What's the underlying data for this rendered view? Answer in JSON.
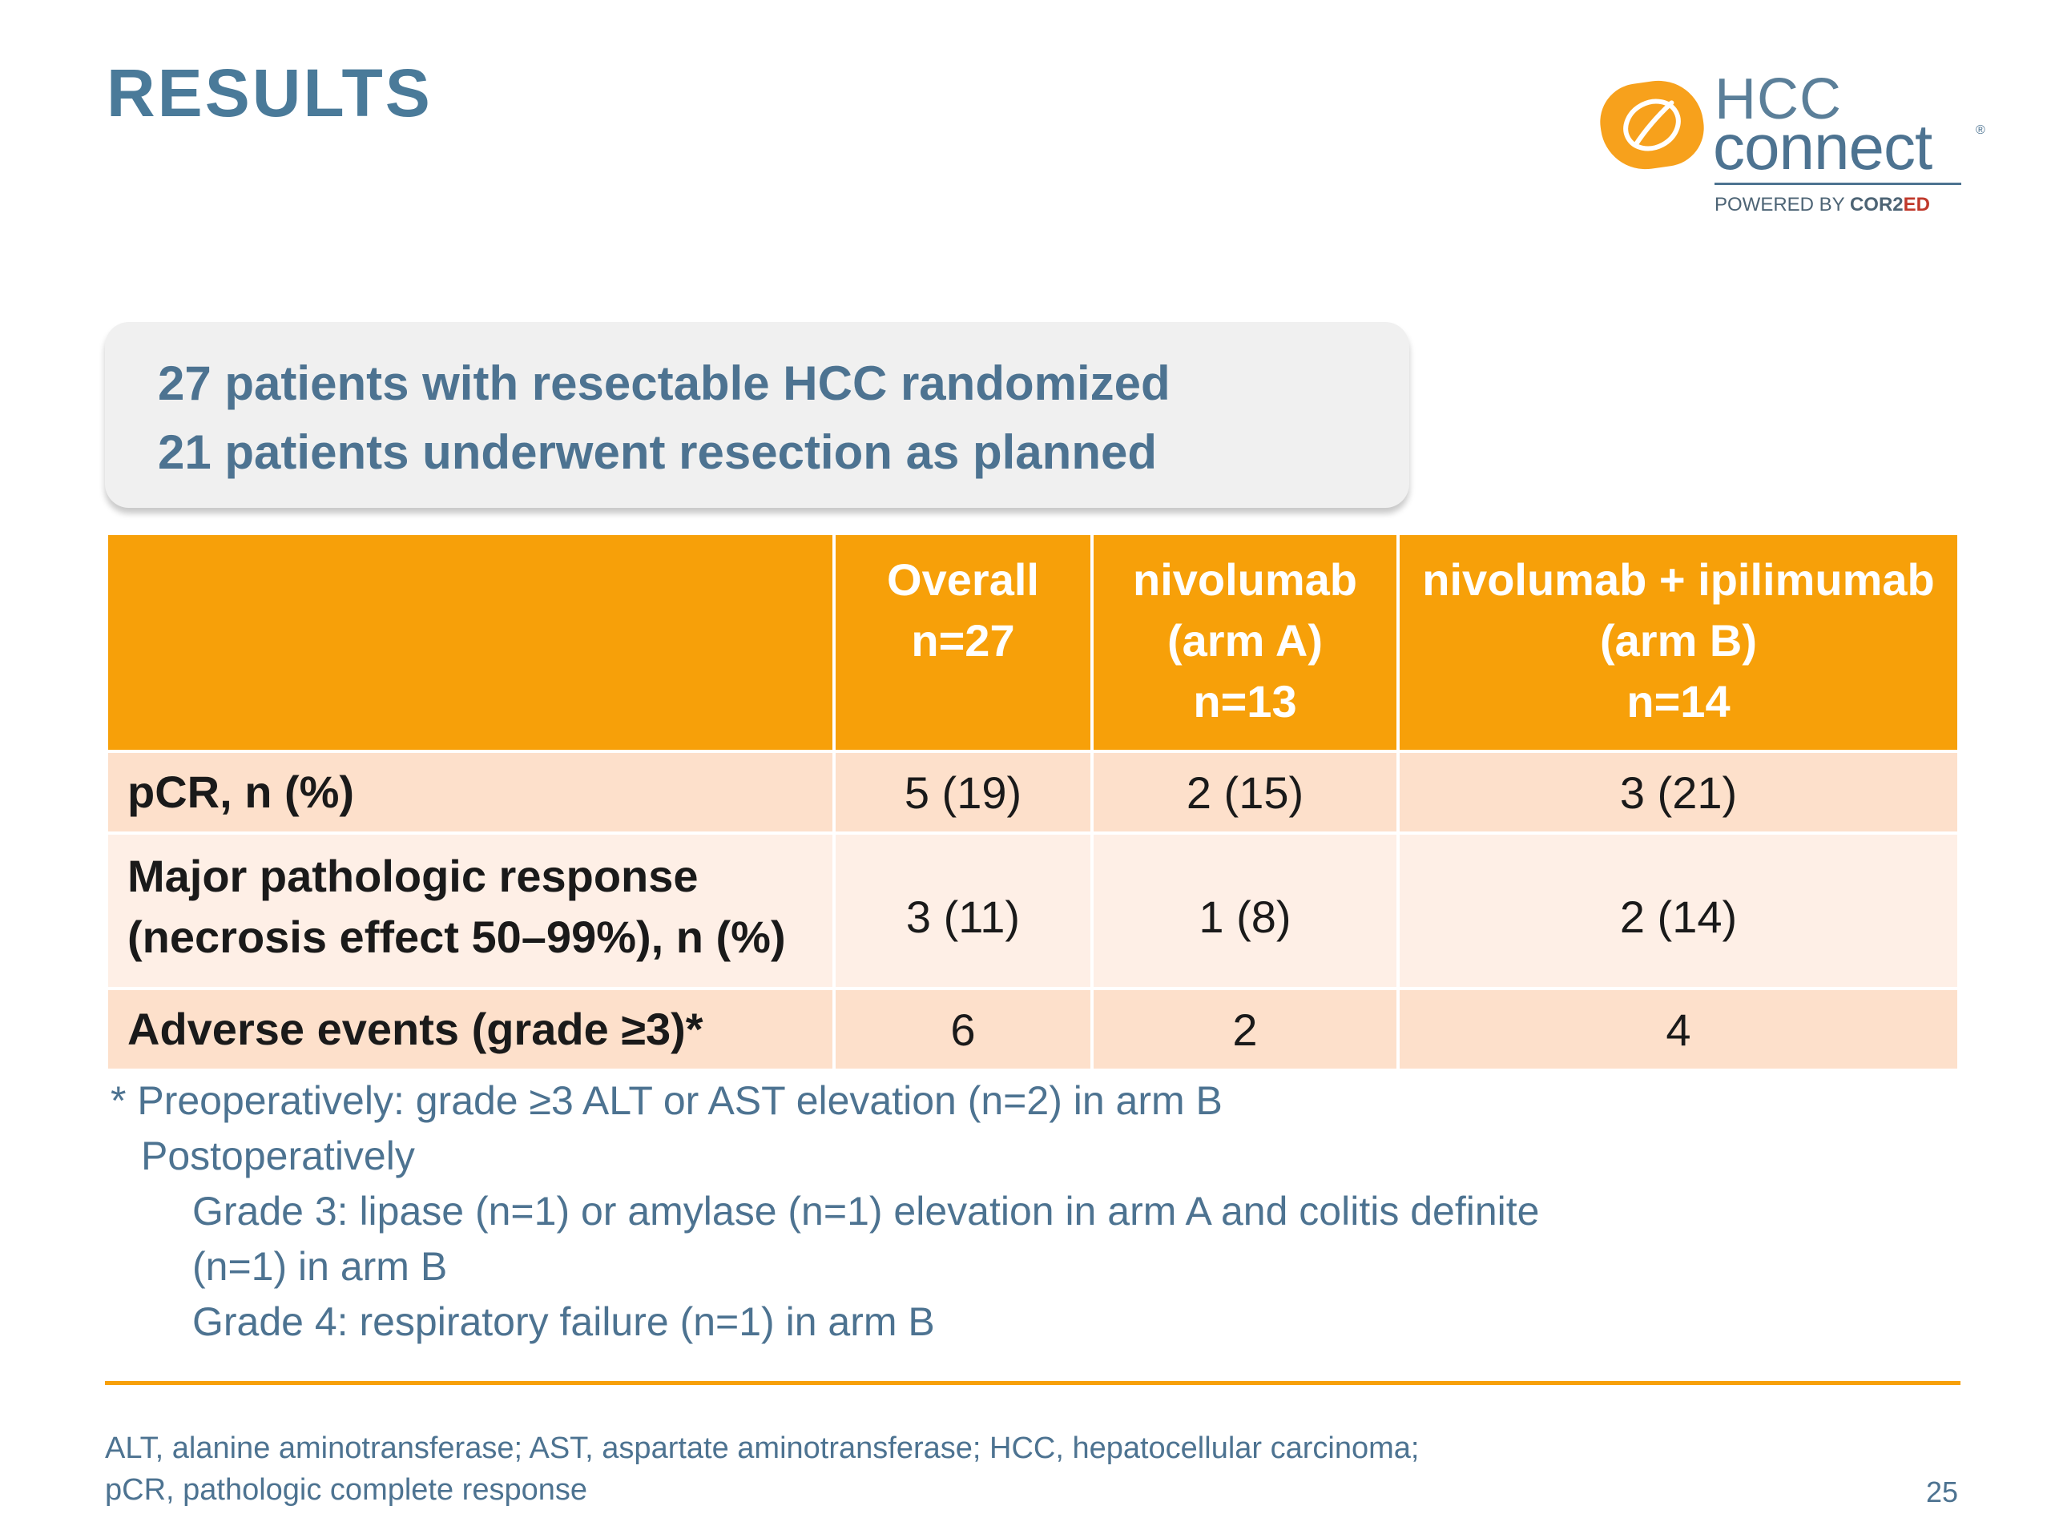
{
  "slide": {
    "title": "RESULTS",
    "page_number": "25"
  },
  "logo": {
    "line1": "HCC",
    "line2": "connect",
    "registered": "®",
    "powered_prefix": "POWERED BY ",
    "powered_brand_a": "COR2",
    "powered_brand_b": "ED"
  },
  "callout": {
    "line1": "27 patients with resectable HCC randomized",
    "line2": "21 patients underwent resection as planned"
  },
  "table": {
    "headers": [
      {
        "line1": "",
        "line2": "",
        "line3": ""
      },
      {
        "line1": "Overall",
        "line2": "n=27",
        "line3": ""
      },
      {
        "line1": "nivolumab",
        "line2": "(arm A)",
        "line3": "n=13"
      },
      {
        "line1": "nivolumab + ipilimumab",
        "line2": "(arm B)",
        "line3": "n=14"
      }
    ],
    "rows": [
      {
        "label_line1": "pCR, n (%)",
        "label_line2": "",
        "overall": "5 (19)",
        "arm_a": "2 (15)",
        "arm_b": "3 (21)"
      },
      {
        "label_line1": "Major pathologic response",
        "label_line2": "(necrosis effect 50–99%), n (%)",
        "overall": "3 (11)",
        "arm_a": "1 (8)",
        "arm_b": "2 (14)"
      },
      {
        "label_line1": "Adverse events (grade ≥3)*",
        "label_line2": "",
        "overall": "6",
        "arm_a": "2",
        "arm_b": "4"
      }
    ]
  },
  "footnote": {
    "line1": "* Preoperatively: grade ≥3 ALT or AST elevation (n=2) in arm B",
    "line2": "Postoperatively",
    "line3": "Grade 3: lipase (n=1) or amylase (n=1) elevation in arm A and colitis definite",
    "line4": "(n=1) in arm B",
    "line5": "Grade 4: respiratory failure (n=1) in arm B"
  },
  "abbreviations": {
    "line1": "ALT, alanine aminotransferase; AST, aspartate aminotransferase; HCC, hepatocellular carcinoma;",
    "line2": "pCR, pathologic complete response"
  },
  "colors": {
    "title_blue": "#4a7a99",
    "accent_orange": "#f7a009",
    "row_light": "#fde0cb",
    "row_lighter": "#feefe6",
    "callout_bg": "#f0f0f0"
  }
}
